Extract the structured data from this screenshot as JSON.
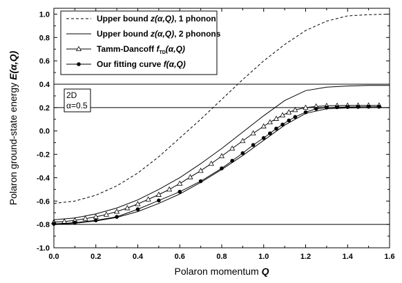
{
  "chart_data": {
    "type": "line",
    "xlabel": {
      "text": "Polaron momentum ",
      "symbol": "Q"
    },
    "ylabel": {
      "text": "Polaron ground-state energy ",
      "symbol": "E(α,Q)"
    },
    "xlim": [
      0.0,
      1.6
    ],
    "ylim": [
      -1.0,
      1.05
    ],
    "xticks": [
      "0.0",
      "0.2",
      "0.4",
      "0.6",
      "0.8",
      "1.0",
      "1.2",
      "1.4",
      "1.6"
    ],
    "yticks": [
      "-1.0",
      "-0.8",
      "-0.6",
      "-0.4",
      "-0.2",
      "0.0",
      "0.2",
      "0.4",
      "0.6",
      "0.8",
      "1.0"
    ],
    "grid": false,
    "legend_position": "top-left",
    "inset_label": {
      "line1": "2D",
      "line2": "α=0.5"
    },
    "reference_lines": [
      -0.8,
      0.2,
      0.4
    ],
    "series": [
      {
        "name": "Upper bound z(α,Q), 1 phonon",
        "legend": {
          "prefix": "Upper bound ",
          "italic": "z(α,Q)",
          "suffix": ", 1 phonon"
        },
        "style": "dashed",
        "x": [
          0.0,
          0.1,
          0.2,
          0.3,
          0.4,
          0.5,
          0.6,
          0.7,
          0.8,
          0.9,
          1.0,
          1.1,
          1.2,
          1.3,
          1.4,
          1.5,
          1.6
        ],
        "y": [
          -0.62,
          -0.6,
          -0.55,
          -0.47,
          -0.36,
          -0.22,
          -0.06,
          0.1,
          0.27,
          0.44,
          0.6,
          0.74,
          0.86,
          0.94,
          0.985,
          0.995,
          1.0
        ]
      },
      {
        "name": "Upper bound z(α,Q), 2 phonons",
        "legend": {
          "prefix": "Upper bound ",
          "italic": "z(α,Q)",
          "suffix": ", 2 phonons"
        },
        "style": "solid",
        "x": [
          0.0,
          0.1,
          0.2,
          0.3,
          0.4,
          0.5,
          0.6,
          0.7,
          0.8,
          0.9,
          1.0,
          1.1,
          1.2,
          1.3,
          1.4,
          1.5,
          1.6
        ],
        "y": [
          -0.76,
          -0.745,
          -0.71,
          -0.66,
          -0.59,
          -0.5,
          -0.4,
          -0.28,
          -0.15,
          -0.01,
          0.13,
          0.26,
          0.345,
          0.375,
          0.385,
          0.39,
          0.39
        ]
      },
      {
        "name": "Tamm-Dancoff fTD(α,Q)",
        "legend": {
          "prefix": "Tamm-Dancoff ",
          "italic": "f",
          "subscript": "TD",
          "suffix_italic": "(α,Q)"
        },
        "style": "solid",
        "marker": "triangle",
        "x": [
          0.0,
          0.05,
          0.1,
          0.15,
          0.2,
          0.25,
          0.3,
          0.35,
          0.4,
          0.45,
          0.5,
          0.55,
          0.6,
          0.65,
          0.7,
          0.75,
          0.8,
          0.85,
          0.9,
          0.95,
          1.0,
          1.03,
          1.06,
          1.09,
          1.12,
          1.15,
          1.2,
          1.25,
          1.3,
          1.35,
          1.4,
          1.45,
          1.5,
          1.55
        ],
        "y": [
          -0.78,
          -0.775,
          -0.765,
          -0.75,
          -0.735,
          -0.715,
          -0.69,
          -0.66,
          -0.625,
          -0.585,
          -0.545,
          -0.5,
          -0.45,
          -0.395,
          -0.34,
          -0.28,
          -0.215,
          -0.15,
          -0.085,
          -0.02,
          0.04,
          0.075,
          0.105,
          0.135,
          0.16,
          0.18,
          0.2,
          0.21,
          0.215,
          0.217,
          0.218,
          0.218,
          0.219,
          0.219
        ]
      },
      {
        "name": "Our fitting curve f(α,Q)",
        "legend": {
          "prefix": "Our fitting curve ",
          "italic": "f(α,Q)"
        },
        "style": "solid",
        "marker": "circle",
        "x": [
          0.0,
          0.1,
          0.2,
          0.3,
          0.4,
          0.5,
          0.6,
          0.7,
          0.8,
          0.85,
          0.9,
          0.95,
          1.0,
          1.03,
          1.06,
          1.09,
          1.12,
          1.15,
          1.2,
          1.25,
          1.3,
          1.35,
          1.4,
          1.45,
          1.5,
          1.55
        ],
        "y": [
          -0.795,
          -0.785,
          -0.765,
          -0.735,
          -0.67,
          -0.595,
          -0.52,
          -0.43,
          -0.32,
          -0.255,
          -0.19,
          -0.12,
          -0.06,
          -0.02,
          0.02,
          0.055,
          0.09,
          0.12,
          0.16,
          0.19,
          0.2,
          0.203,
          0.205,
          0.206,
          0.207,
          0.207
        ]
      },
      {
        "name": "lower curve",
        "style": "solid",
        "x": [
          0.0,
          0.1,
          0.2,
          0.3,
          0.4,
          0.5,
          0.6,
          0.7,
          0.8,
          0.9,
          1.0,
          1.1,
          1.2,
          1.3,
          1.4,
          1.5,
          1.6
        ],
        "y": [
          -0.8,
          -0.79,
          -0.77,
          -0.74,
          -0.69,
          -0.62,
          -0.54,
          -0.44,
          -0.33,
          -0.21,
          -0.08,
          0.05,
          0.15,
          0.19,
          0.197,
          0.2,
          0.2
        ]
      }
    ]
  }
}
